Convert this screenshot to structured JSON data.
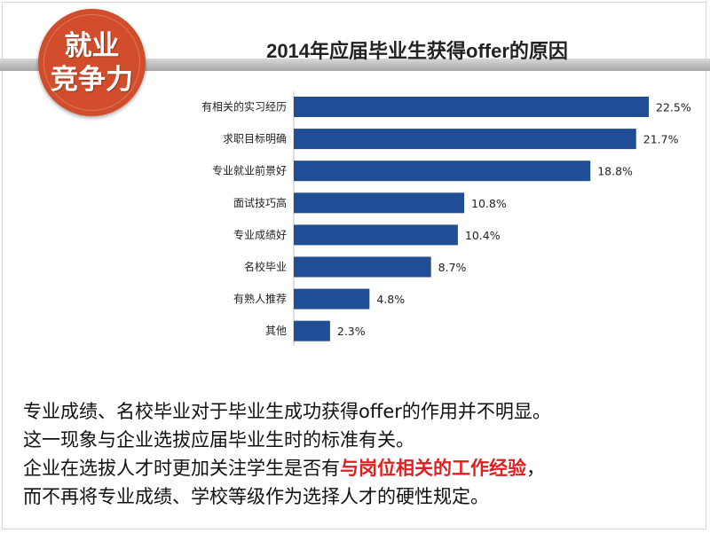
{
  "badge": {
    "line1": "就业",
    "line2": "竞争力"
  },
  "chart_data": {
    "type": "bar",
    "orientation": "horizontal",
    "title": "2014年应届毕业生获得offer的原因",
    "categories": [
      "有相关的实习经历",
      "求职目标明确",
      "专业就业前景好",
      "面试技巧高",
      "专业成绩好",
      "名校毕业",
      "有熟人推荐",
      "其他"
    ],
    "values": [
      22.5,
      21.7,
      18.8,
      10.8,
      10.4,
      8.7,
      4.8,
      2.3
    ],
    "value_labels": [
      "22.5%",
      "21.7%",
      "18.8%",
      "10.8%",
      "10.4%",
      "8.7%",
      "4.8%",
      "2.3%"
    ],
    "unit": "%",
    "bar_color": "#1f4e96",
    "grid": false,
    "legend": "none"
  },
  "caption": {
    "line1": "专业成绩、名校毕业对于毕业生成功获得offer的作用并不明显。",
    "line2": "这一现象与企业选拔应届毕业生时的标准有关。",
    "line3_prefix": "企业在选拔人才时更加关注学生是否有",
    "line3_highlight": "与岗位相关的工作经验",
    "line3_suffix": "，",
    "line4": "而不再将专业成绩、学校等级作为选择人才的硬性规定。"
  },
  "colors": {
    "badge": "#d14d2b",
    "bar": "#1f4e96",
    "highlight": "#e02020"
  }
}
